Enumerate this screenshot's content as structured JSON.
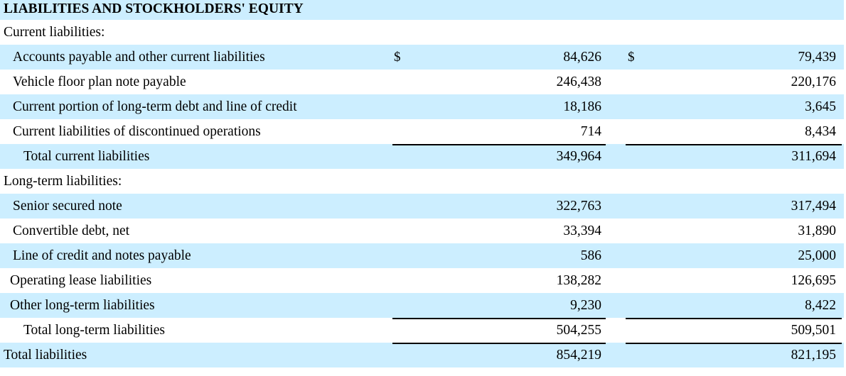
{
  "section_title": "LIABILITIES AND STOCKHOLDERS' EQUITY",
  "currency_symbol": "$",
  "rows": [
    {
      "label": "Current liabilities:",
      "v1": "",
      "v2": ""
    },
    {
      "label": "Accounts payable and other current liabilities",
      "v1": "84,626",
      "v2": "79,439"
    },
    {
      "label": "Vehicle floor plan note payable",
      "v1": "246,438",
      "v2": "220,176"
    },
    {
      "label": "Current portion of long-term debt and line of credit",
      "v1": "18,186",
      "v2": "3,645"
    },
    {
      "label": "Current liabilities of discontinued operations",
      "v1": "714",
      "v2": "8,434"
    },
    {
      "label": "Total current liabilities",
      "v1": "349,964",
      "v2": "311,694"
    },
    {
      "label": "Long-term liabilities:",
      "v1": "",
      "v2": ""
    },
    {
      "label": "Senior secured note",
      "v1": "322,763",
      "v2": "317,494"
    },
    {
      "label": "Convertible debt, net",
      "v1": "33,394",
      "v2": "31,890"
    },
    {
      "label": "Line of credit and notes payable",
      "v1": "586",
      "v2": "25,000"
    },
    {
      "label": "Operating lease liabilities",
      "v1": "138,282",
      "v2": "126,695"
    },
    {
      "label": "Other long-term liabilities",
      "v1": "9,230",
      "v2": "8,422"
    },
    {
      "label": "Total long-term liabilities",
      "v1": "504,255",
      "v2": "509,501"
    },
    {
      "label": "Total liabilities",
      "v1": "854,219",
      "v2": "821,195"
    }
  ]
}
